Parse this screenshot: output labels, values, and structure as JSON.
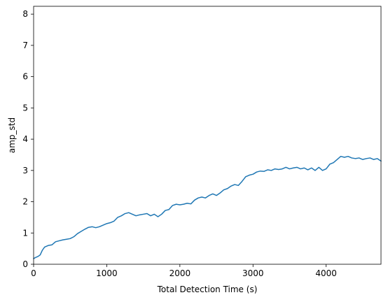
{
  "chart_data": {
    "type": "line",
    "title": "",
    "xlabel": "Total Detection Time (s)",
    "ylabel": "amp_std",
    "xlim": [
      0,
      4750
    ],
    "ylim": [
      0,
      8.25
    ],
    "xticks": [
      0,
      1000,
      2000,
      3000,
      4000
    ],
    "yticks": [
      0,
      1,
      2,
      3,
      4,
      5,
      6,
      7,
      8
    ],
    "xtick_labels": [
      "0",
      "1000",
      "2000",
      "3000",
      "4000"
    ],
    "ytick_labels": [
      "0",
      "1",
      "2",
      "3",
      "4",
      "5",
      "6",
      "7",
      "8"
    ],
    "grid": false,
    "series": [
      {
        "name": "amp_std",
        "color": "#1f77b4",
        "x": [
          0,
          30,
          60,
          90,
          120,
          150,
          200,
          250,
          300,
          350,
          400,
          450,
          500,
          550,
          600,
          650,
          700,
          750,
          800,
          850,
          900,
          950,
          1000,
          1050,
          1100,
          1150,
          1200,
          1250,
          1300,
          1350,
          1400,
          1450,
          1500,
          1550,
          1600,
          1650,
          1700,
          1750,
          1800,
          1850,
          1900,
          1950,
          2000,
          2050,
          2100,
          2150,
          2200,
          2250,
          2300,
          2350,
          2400,
          2450,
          2500,
          2550,
          2600,
          2650,
          2700,
          2750,
          2800,
          2850,
          2900,
          2950,
          3000,
          3050,
          3100,
          3150,
          3200,
          3250,
          3300,
          3350,
          3400,
          3450,
          3500,
          3550,
          3600,
          3650,
          3700,
          3750,
          3800,
          3850,
          3900,
          3950,
          4000,
          4050,
          4100,
          4150,
          4200,
          4250,
          4300,
          4350,
          4400,
          4450,
          4500,
          4550,
          4600,
          4650,
          4700,
          4750
        ],
        "values": [
          0.18,
          0.22,
          0.25,
          0.3,
          0.45,
          0.55,
          0.6,
          0.62,
          0.72,
          0.75,
          0.78,
          0.8,
          0.82,
          0.88,
          0.98,
          1.05,
          1.12,
          1.18,
          1.2,
          1.17,
          1.2,
          1.25,
          1.3,
          1.33,
          1.38,
          1.5,
          1.55,
          1.62,
          1.65,
          1.6,
          1.55,
          1.58,
          1.6,
          1.62,
          1.55,
          1.6,
          1.52,
          1.6,
          1.72,
          1.75,
          1.88,
          1.92,
          1.9,
          1.92,
          1.95,
          1.93,
          2.05,
          2.12,
          2.15,
          2.12,
          2.2,
          2.25,
          2.2,
          2.28,
          2.38,
          2.42,
          2.5,
          2.55,
          2.52,
          2.65,
          2.8,
          2.85,
          2.88,
          2.95,
          2.98,
          2.97,
          3.02,
          3.0,
          3.05,
          3.03,
          3.05,
          3.1,
          3.05,
          3.08,
          3.1,
          3.05,
          3.08,
          3.02,
          3.08,
          3.0,
          3.1,
          3.0,
          3.05,
          3.2,
          3.25,
          3.35,
          3.45,
          3.42,
          3.45,
          3.4,
          3.38,
          3.4,
          3.35,
          3.38,
          3.4,
          3.35,
          3.38,
          3.3
        ]
      }
    ]
  }
}
